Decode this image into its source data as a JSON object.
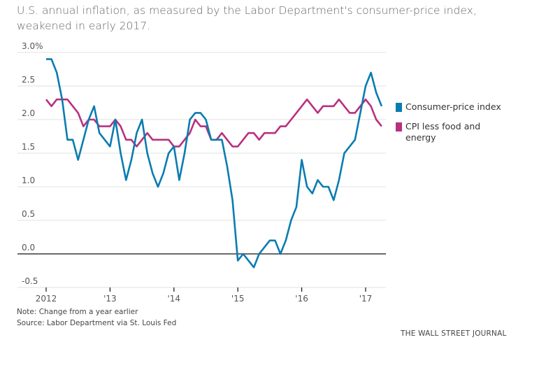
{
  "title": "U.S. annual inflation, as measured by the Labor Department's consumer-price index, weakened in early 2017.",
  "chart_data": {
    "type": "line",
    "title": "U.S. annual inflation, as measured by the Labor Department's consumer-price index, weakened in early 2017.",
    "xlabel": "",
    "ylabel": "",
    "y_unit_suffix": "%",
    "ylim": [
      -0.5,
      3.0
    ],
    "yticks": [
      3.0,
      2.5,
      2.0,
      1.5,
      1.0,
      0.5,
      0.0,
      -0.5
    ],
    "ytick_labels": [
      "3.0%",
      "2.5",
      "2.0",
      "1.5",
      "1.0",
      "0.5",
      "0.0",
      "-0.5"
    ],
    "x_start": "2012-01",
    "x_frequency": "monthly",
    "xlim_years": [
      2011.6,
      2017.4
    ],
    "xticks_years": [
      2012,
      2013,
      2014,
      2015,
      2016,
      2017
    ],
    "xtick_labels": [
      "2012",
      "'13",
      "'14",
      "'15",
      "'16",
      "'17"
    ],
    "grid": true,
    "zero_line": true,
    "legend_position": "right",
    "series": [
      {
        "name": "Consumer-price index",
        "color": "#0a7cb0",
        "values": [
          2.9,
          2.9,
          2.7,
          2.3,
          1.7,
          1.7,
          1.4,
          1.7,
          2.0,
          2.2,
          1.8,
          1.7,
          1.6,
          2.0,
          1.5,
          1.1,
          1.4,
          1.8,
          2.0,
          1.5,
          1.2,
          1.0,
          1.2,
          1.5,
          1.6,
          1.1,
          1.5,
          2.0,
          2.1,
          2.1,
          2.0,
          1.7,
          1.7,
          1.7,
          1.3,
          0.8,
          -0.1,
          0.0,
          -0.1,
          -0.2,
          0.0,
          0.1,
          0.2,
          0.2,
          0.0,
          0.2,
          0.5,
          0.7,
          1.4,
          1.0,
          0.9,
          1.1,
          1.0,
          1.0,
          0.8,
          1.1,
          1.5,
          1.6,
          1.7,
          2.1,
          2.5,
          2.7,
          2.4,
          2.2
        ]
      },
      {
        "name": "CPI less food and energy",
        "color": "#b8307f",
        "values": [
          2.3,
          2.2,
          2.3,
          2.3,
          2.3,
          2.2,
          2.1,
          1.9,
          2.0,
          2.0,
          1.9,
          1.9,
          1.9,
          2.0,
          1.9,
          1.7,
          1.7,
          1.6,
          1.7,
          1.8,
          1.7,
          1.7,
          1.7,
          1.7,
          1.6,
          1.6,
          1.7,
          1.8,
          2.0,
          1.9,
          1.9,
          1.7,
          1.7,
          1.8,
          1.7,
          1.6,
          1.6,
          1.7,
          1.8,
          1.8,
          1.7,
          1.8,
          1.8,
          1.8,
          1.9,
          1.9,
          2.0,
          2.1,
          2.2,
          2.3,
          2.2,
          2.1,
          2.2,
          2.2,
          2.2,
          2.3,
          2.2,
          2.1,
          2.1,
          2.2,
          2.3,
          2.2,
          2.0,
          1.9
        ]
      }
    ]
  },
  "legend": {
    "items": [
      {
        "label": "Consumer-price index",
        "color": "#0a7cb0"
      },
      {
        "label": "CPI less food and energy",
        "color": "#b8307f"
      }
    ]
  },
  "footer": {
    "note": "Note: Change from a year earlier",
    "source": "Source: Labor Department via St. Louis Fed",
    "brand": "THE WALL STREET JOURNAL"
  }
}
